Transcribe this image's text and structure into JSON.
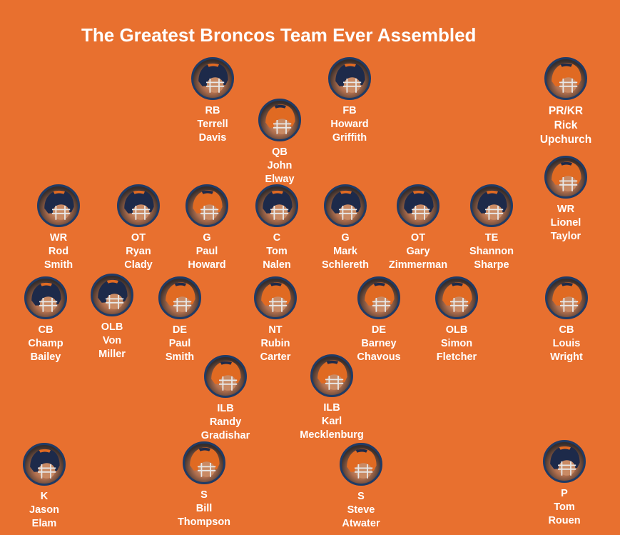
{
  "title": "The Greatest Broncos Team Ever Assembled",
  "colors": {
    "background": "#e8702f",
    "text": "#ffffff",
    "border": "#1f3b66"
  },
  "players": [
    {
      "id": "rb",
      "pos": "RB",
      "first": "Terrell",
      "last": "Davis",
      "helmet": "navy-icon"
    },
    {
      "id": "qb",
      "pos": "QB",
      "first": "John",
      "last": "Elway",
      "helmet": "orange-icon"
    },
    {
      "id": "fb",
      "pos": "FB",
      "first": "Howard",
      "last": "Griffith",
      "helmet": "navy-icon"
    },
    {
      "id": "prkr",
      "pos": "PR/KR",
      "first": "Rick",
      "last": "Upchurch",
      "helmet": "orange-icon"
    },
    {
      "id": "wr2",
      "pos": "WR",
      "first": "Lionel",
      "last": "Taylor",
      "helmet": "orange-icon"
    },
    {
      "id": "wr1",
      "pos": "WR",
      "first": "Rod",
      "last": "Smith",
      "helmet": "navy-icon"
    },
    {
      "id": "ot1",
      "pos": "OT",
      "first": "Ryan",
      "last": "Clady",
      "helmet": "navy-icon"
    },
    {
      "id": "g1",
      "pos": "G",
      "first": "Paul",
      "last": "Howard",
      "helmet": "orange-icon"
    },
    {
      "id": "c",
      "pos": "C",
      "first": "Tom",
      "last": "Nalen",
      "helmet": "navy-icon"
    },
    {
      "id": "g2",
      "pos": "G",
      "first": "Mark",
      "last": "Schlereth",
      "helmet": "navy-icon"
    },
    {
      "id": "ot2",
      "pos": "OT",
      "first": "Gary",
      "last": "Zimmerman",
      "helmet": "navy-icon"
    },
    {
      "id": "te",
      "pos": "TE",
      "first": "Shannon",
      "last": "Sharpe",
      "helmet": "navy-icon"
    },
    {
      "id": "cb1",
      "pos": "CB",
      "first": "Champ",
      "last": "Bailey",
      "helmet": "navy-icon"
    },
    {
      "id": "olb1",
      "pos": "OLB",
      "first": "Von",
      "last": "Miller",
      "helmet": "navy-icon"
    },
    {
      "id": "de1",
      "pos": "DE",
      "first": "Paul",
      "last": "Smith",
      "helmet": "orange-icon"
    },
    {
      "id": "nt",
      "pos": "NT",
      "first": "Rubin",
      "last": "Carter",
      "helmet": "orange-icon"
    },
    {
      "id": "de2",
      "pos": "DE",
      "first": "Barney",
      "last": "Chavous",
      "helmet": "orange-icon"
    },
    {
      "id": "olb2",
      "pos": "OLB",
      "first": "Simon",
      "last": "Fletcher",
      "helmet": "orange-icon"
    },
    {
      "id": "cb2",
      "pos": "CB",
      "first": "Louis",
      "last": "Wright",
      "helmet": "orange-icon"
    },
    {
      "id": "ilb1",
      "pos": "ILB",
      "first": "Randy",
      "last": "Gradishar",
      "helmet": "orange-icon"
    },
    {
      "id": "ilb2",
      "pos": "ILB",
      "first": "Karl",
      "last": "Mecklenburg",
      "helmet": "orange-icon"
    },
    {
      "id": "k",
      "pos": "K",
      "first": "Jason",
      "last": "Elam",
      "helmet": "navy-icon"
    },
    {
      "id": "s1",
      "pos": "S",
      "first": "Bill",
      "last": "Thompson",
      "helmet": "orange-icon"
    },
    {
      "id": "s2",
      "pos": "S",
      "first": "Steve",
      "last": "Atwater",
      "helmet": "orange-icon"
    },
    {
      "id": "p",
      "pos": "P",
      "first": "Tom",
      "last": "Rouen",
      "helmet": "navy-icon"
    }
  ]
}
